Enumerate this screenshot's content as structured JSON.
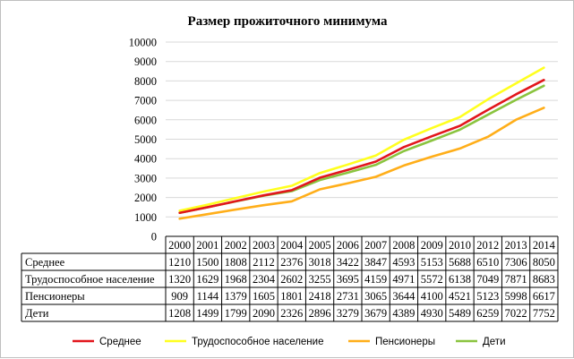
{
  "chart_data": {
    "type": "line",
    "title": "Размер прожиточного  минимума",
    "xlabel": "",
    "ylabel": "",
    "ylim": [
      0,
      10000
    ],
    "yticks": [
      0,
      1000,
      2000,
      3000,
      4000,
      5000,
      6000,
      7000,
      8000,
      9000,
      10000
    ],
    "grid": "horizontal major gridlines",
    "legend": "bottom",
    "data_table": true,
    "categories": [
      "2000",
      "2001",
      "2002",
      "2003",
      "2004",
      "2005",
      "2006",
      "2007",
      "2008",
      "2009",
      "2010",
      "2012",
      "2013",
      "2014"
    ],
    "series": [
      {
        "name": "Среднее",
        "color": "#e2161c",
        "values": [
          1210,
          1500,
          1808,
          2112,
          2376,
          3018,
          3422,
          3847,
          4593,
          5153,
          5688,
          6510,
          7306,
          8050
        ]
      },
      {
        "name": "Трудоспособное население",
        "color": "#ffff1f",
        "values": [
          1320,
          1629,
          1968,
          2304,
          2602,
          3255,
          3695,
          4159,
          4971,
          5572,
          6138,
          7049,
          7871,
          8683
        ]
      },
      {
        "name": "Пенсионеры",
        "color": "#ffae19",
        "values": [
          909,
          1144,
          1379,
          1605,
          1801,
          2418,
          2731,
          3065,
          3644,
          4100,
          4521,
          5123,
          5998,
          6617
        ]
      },
      {
        "name": "Дети",
        "color": "#8ac43f",
        "values": [
          1208,
          1499,
          1799,
          2090,
          2326,
          2896,
          3279,
          3679,
          4389,
          4930,
          5489,
          6259,
          7022,
          7752
        ]
      }
    ]
  }
}
